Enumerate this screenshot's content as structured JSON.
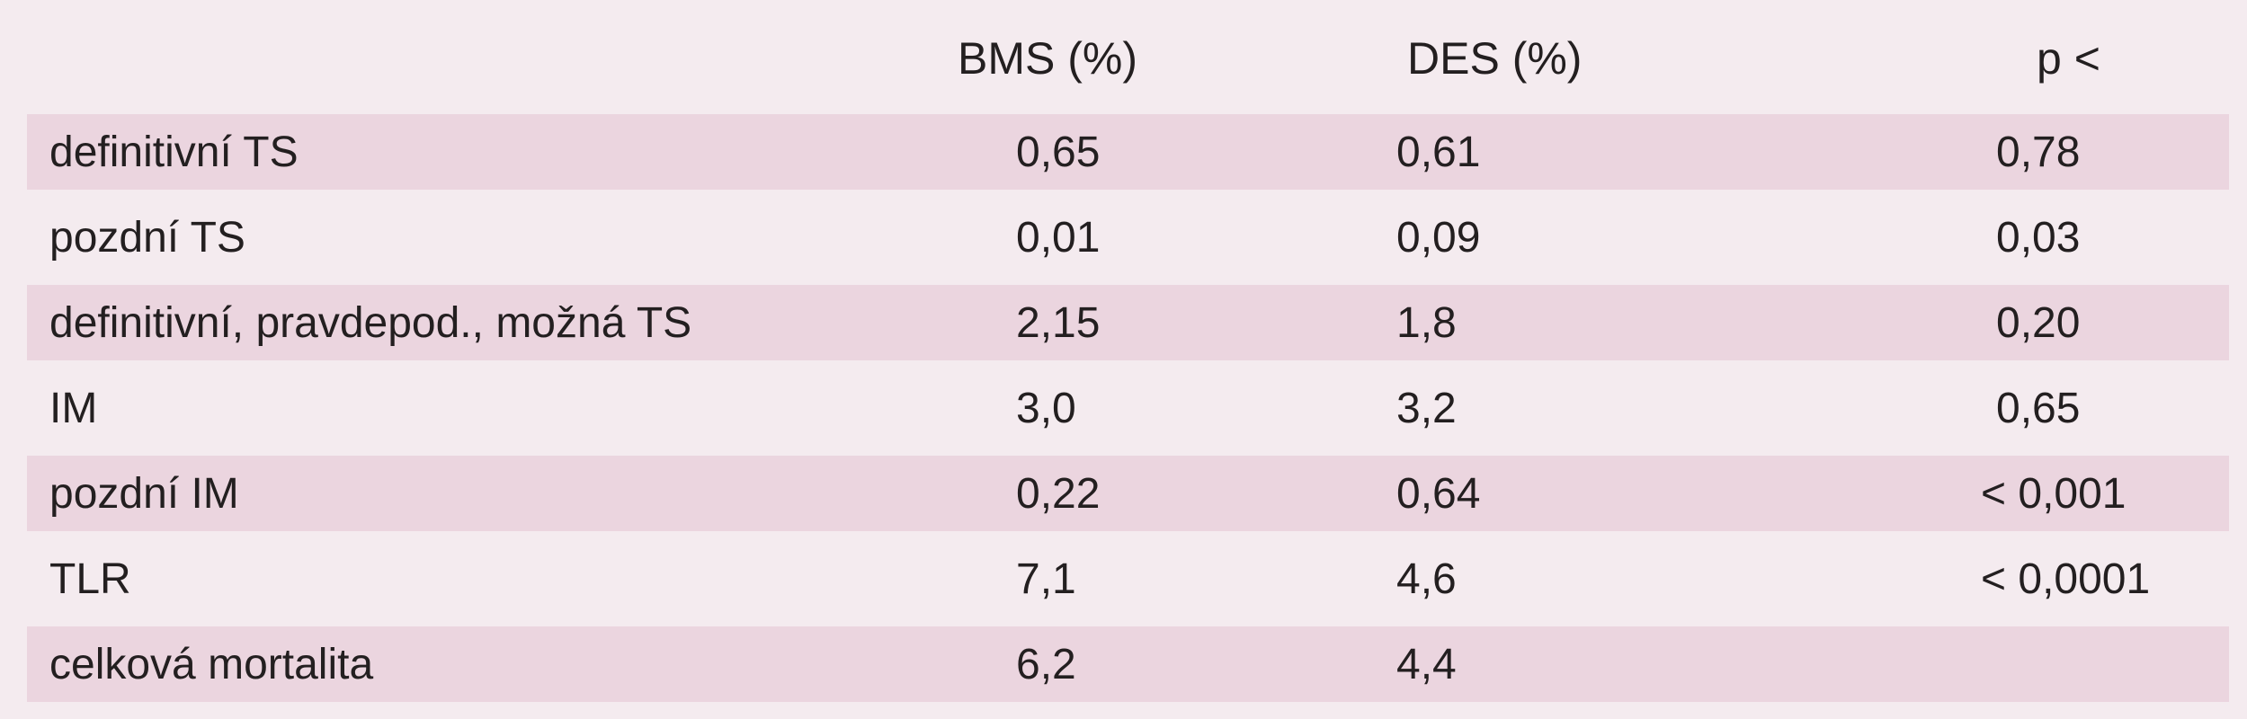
{
  "table": {
    "headers": {
      "label": "",
      "bms": "BMS (%)",
      "des": "DES (%)",
      "p": "p <"
    },
    "rows": [
      {
        "label": "definitivní TS",
        "bms": "0,65",
        "des": "0,61",
        "p": "0,78",
        "shaded": true
      },
      {
        "label": "pozdní TS",
        "bms": "0,01",
        "des": "0,09",
        "p": "0,03",
        "shaded": false
      },
      {
        "label": "definitivní, pravdepod., možná TS",
        "bms": "2,15",
        "des": "1,8",
        "p": "0,20",
        "shaded": true
      },
      {
        "label": "IM",
        "bms": "3,0",
        "des": "3,2",
        "p": "0,65",
        "shaded": false
      },
      {
        "label": "pozdní IM",
        "bms": "0,22",
        "des": "0,64",
        "p": "< 0,001",
        "shaded": true
      },
      {
        "label": "TLR",
        "bms": "7,1",
        "des": "4,6",
        "p": "< 0,0001",
        "shaded": false
      },
      {
        "label": "celková mortalita",
        "bms": "6,2",
        "des": "4,4",
        "p": "",
        "shaded": true
      }
    ]
  },
  "colors": {
    "background": "#f4ebef",
    "row_shade": "#ebd5df",
    "text": "#231f20"
  }
}
